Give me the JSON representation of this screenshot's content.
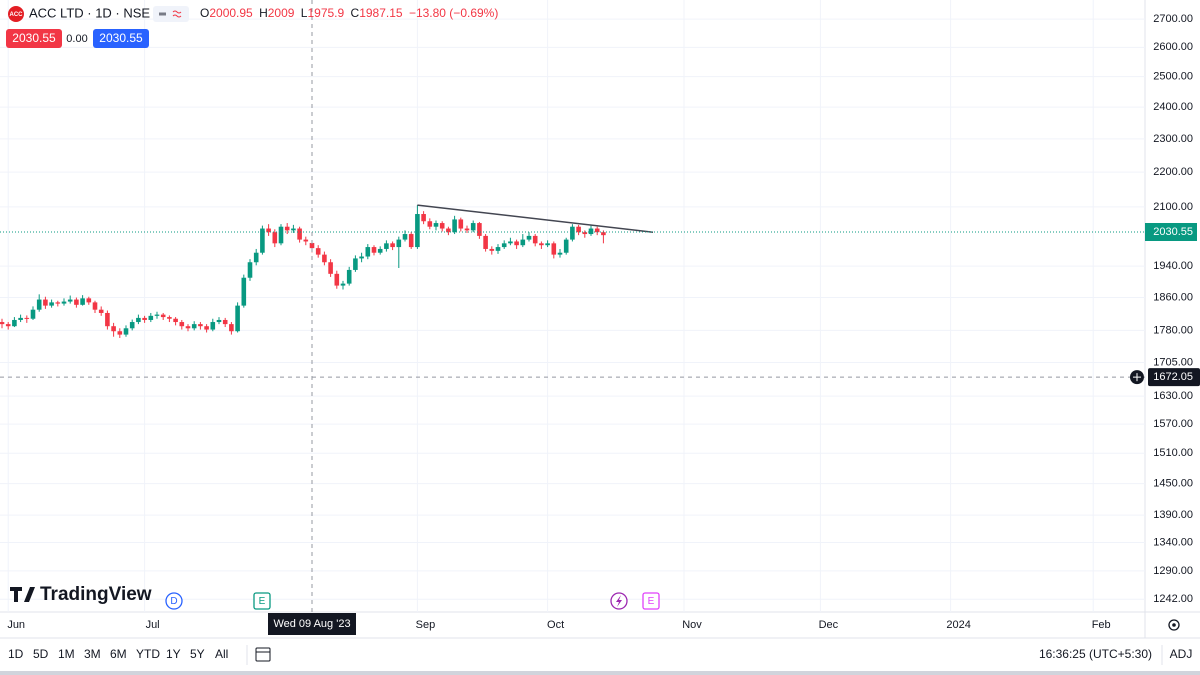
{
  "chart_data": {
    "type": "candlestick",
    "x": [
      "2023-05-31",
      "2023-06-01",
      "2023-06-02",
      "2023-06-05",
      "2023-06-06",
      "2023-06-07",
      "2023-06-08",
      "2023-06-09",
      "2023-06-12",
      "2023-06-13",
      "2023-06-14",
      "2023-06-15",
      "2023-06-16",
      "2023-06-19",
      "2023-06-20",
      "2023-06-21",
      "2023-06-22",
      "2023-06-23",
      "2023-06-26",
      "2023-06-27",
      "2023-06-28",
      "2023-06-29",
      "2023-06-30",
      "2023-07-03",
      "2023-07-04",
      "2023-07-05",
      "2023-07-06",
      "2023-07-07",
      "2023-07-10",
      "2023-07-11",
      "2023-07-12",
      "2023-07-13",
      "2023-07-14",
      "2023-07-17",
      "2023-07-18",
      "2023-07-19",
      "2023-07-20",
      "2023-07-21",
      "2023-07-24",
      "2023-07-25",
      "2023-07-26",
      "2023-07-27",
      "2023-07-28",
      "2023-07-31",
      "2023-08-01",
      "2023-08-02",
      "2023-08-03",
      "2023-08-04",
      "2023-08-07",
      "2023-08-08",
      "2023-08-09",
      "2023-08-10",
      "2023-08-11",
      "2023-08-14",
      "2023-08-15",
      "2023-08-16",
      "2023-08-17",
      "2023-08-18",
      "2023-08-21",
      "2023-08-22",
      "2023-08-23",
      "2023-08-24",
      "2023-08-25",
      "2023-08-28",
      "2023-08-29",
      "2023-08-30",
      "2023-08-31",
      "2023-09-01",
      "2023-09-04",
      "2023-09-05",
      "2023-09-06",
      "2023-09-07",
      "2023-09-08",
      "2023-09-11",
      "2023-09-12",
      "2023-09-13",
      "2023-09-14",
      "2023-09-15",
      "2023-09-18",
      "2023-09-19",
      "2023-09-20",
      "2023-09-21",
      "2023-09-22",
      "2023-09-25",
      "2023-09-26",
      "2023-09-27",
      "2023-09-28",
      "2023-09-29",
      "2023-10-02",
      "2023-10-03",
      "2023-10-04",
      "2023-10-05",
      "2023-10-06",
      "2023-10-09",
      "2023-10-10",
      "2023-10-11",
      "2023-10-12",
      "2023-10-13"
    ],
    "open": [
      1800,
      1795,
      1790,
      1805,
      1810,
      1808,
      1830,
      1855,
      1840,
      1848,
      1845,
      1850,
      1855,
      1842,
      1858,
      1848,
      1830,
      1822,
      1790,
      1778,
      1770,
      1785,
      1800,
      1810,
      1805,
      1815,
      1818,
      1812,
      1808,
      1800,
      1790,
      1785,
      1795,
      1790,
      1782,
      1800,
      1805,
      1795,
      1778,
      1840,
      1910,
      1950,
      1975,
      2040,
      2030,
      2000,
      2045,
      2035,
      2040,
      2010,
      2000.95,
      1987.15,
      1970,
      1950,
      1920,
      1890,
      1895,
      1930,
      1960,
      1965,
      1990,
      1975,
      1985,
      2000,
      1990,
      2010,
      2025,
      1990,
      2080,
      2060,
      2045,
      2055,
      2040,
      2030,
      2065,
      2040,
      2035,
      2055,
      2020,
      1985,
      1980,
      1990,
      2000,
      2005,
      1995,
      2010,
      2020,
      2000,
      1995,
      2000,
      1970,
      1975,
      2010,
      2045,
      2030,
      2025,
      2040,
      2030
    ],
    "high": [
      1808,
      1800,
      1812,
      1818,
      1816,
      1838,
      1868,
      1862,
      1855,
      1852,
      1858,
      1865,
      1860,
      1866,
      1862,
      1852,
      1838,
      1828,
      1798,
      1785,
      1792,
      1806,
      1818,
      1815,
      1822,
      1825,
      1822,
      1816,
      1812,
      1805,
      1795,
      1802,
      1800,
      1795,
      1808,
      1812,
      1810,
      1800,
      1848,
      1918,
      1958,
      1985,
      2048,
      2052,
      2038,
      2052,
      2055,
      2050,
      2045,
      2018,
      2009,
      1995,
      1978,
      1958,
      1928,
      1902,
      1938,
      1968,
      1975,
      1998,
      1995,
      1992,
      2008,
      2005,
      2018,
      2035,
      2030,
      2105,
      2088,
      2068,
      2062,
      2060,
      2045,
      2075,
      2070,
      2048,
      2062,
      2058,
      2025,
      1992,
      1998,
      2008,
      2015,
      2010,
      2025,
      2030,
      2025,
      2005,
      2008,
      2005,
      1985,
      2015,
      2052,
      2050,
      2035,
      2048,
      2045,
      2035
    ],
    "low": [
      1785,
      1782,
      1788,
      1800,
      1798,
      1805,
      1825,
      1832,
      1835,
      1838,
      1840,
      1845,
      1835,
      1840,
      1842,
      1822,
      1815,
      1782,
      1765,
      1762,
      1765,
      1780,
      1795,
      1798,
      1800,
      1808,
      1805,
      1800,
      1792,
      1782,
      1778,
      1780,
      1782,
      1775,
      1778,
      1795,
      1788,
      1770,
      1775,
      1835,
      1902,
      1942,
      1970,
      2020,
      1990,
      1995,
      2025,
      2028,
      2002,
      1995,
      1975.9,
      1962,
      1942,
      1912,
      1882,
      1880,
      1890,
      1925,
      1950,
      1958,
      1968,
      1970,
      1978,
      1982,
      1935,
      2005,
      1985,
      1985,
      2052,
      2038,
      2035,
      2032,
      2022,
      2025,
      2032,
      2028,
      2030,
      2012,
      1978,
      1970,
      1972,
      1985,
      1995,
      1985,
      1990,
      2005,
      1992,
      1985,
      1990,
      1960,
      1962,
      1970,
      2005,
      2022,
      2015,
      2020,
      2022,
      2000
    ],
    "close": [
      1795,
      1790,
      1805,
      1810,
      1808,
      1830,
      1855,
      1840,
      1848,
      1845,
      1850,
      1855,
      1842,
      1858,
      1848,
      1830,
      1822,
      1790,
      1778,
      1770,
      1785,
      1800,
      1810,
      1805,
      1815,
      1818,
      1812,
      1808,
      1800,
      1790,
      1785,
      1795,
      1790,
      1782,
      1800,
      1805,
      1795,
      1778,
      1840,
      1910,
      1950,
      1975,
      2040,
      2030,
      2000,
      2045,
      2035,
      2040,
      2010,
      2005,
      1987.15,
      1970,
      1950,
      1920,
      1890,
      1895,
      1930,
      1960,
      1965,
      1990,
      1975,
      1985,
      2000,
      1990,
      2010,
      2025,
      1990,
      2080,
      2060,
      2045,
      2055,
      2040,
      2030,
      2065,
      2040,
      2035,
      2055,
      2020,
      1985,
      1980,
      1990,
      2000,
      2005,
      1995,
      2010,
      2020,
      2000,
      1995,
      2000,
      1970,
      1975,
      2010,
      2045,
      2030,
      2025,
      2040,
      2030,
      2022
    ],
    "up_color": "#089981",
    "down_color": "#f23645",
    "log": true,
    "grid": true,
    "ylim": [
      1221,
      2770
    ],
    "yticks": [
      {
        "value": 1242,
        "label": "1242.00"
      },
      {
        "value": 1290,
        "label": "1290.00"
      },
      {
        "value": 1340,
        "label": "1340.00"
      },
      {
        "value": 1390,
        "label": "1390.00"
      },
      {
        "value": 1450,
        "label": "1450.00"
      },
      {
        "value": 1510,
        "label": "1510.00"
      },
      {
        "value": 1570,
        "label": "1570.00"
      },
      {
        "value": 1630,
        "label": "1630.00"
      },
      {
        "value": 1705,
        "label": "1705.00"
      },
      {
        "value": 1780,
        "label": "1780.00"
      },
      {
        "value": 1860,
        "label": "1860.00"
      },
      {
        "value": 1940,
        "label": "1940.00"
      },
      {
        "value": 2100,
        "label": "2100.00"
      },
      {
        "value": 2200,
        "label": "2200.00"
      },
      {
        "value": 2300,
        "label": "2300.00"
      },
      {
        "value": 2400,
        "label": "2400.00"
      },
      {
        "value": 2500,
        "label": "2500.00"
      },
      {
        "value": 2600,
        "label": "2600.00"
      },
      {
        "value": 2700,
        "label": "2700.00"
      }
    ],
    "xticks": [
      {
        "value": "2023-06-01",
        "label": "Jun"
      },
      {
        "value": "2023-07-03",
        "label": "Jul"
      },
      {
        "value": "2023-09-01",
        "label": "Sep"
      },
      {
        "value": "2023-10-02",
        "label": "Oct"
      },
      {
        "value": "2023-11-01",
        "label": "Nov"
      },
      {
        "value": "2023-12-01",
        "label": "Dec"
      },
      {
        "value": "2024-01-01",
        "label": "2024"
      },
      {
        "value": "2024-02-01",
        "label": "Feb"
      }
    ],
    "price_line": {
      "value": 2030.55,
      "color": "#089981"
    },
    "crosshair": {
      "x": "2023-08-09",
      "x_label": "Wed 09 Aug '23",
      "y": 1672.05
    },
    "trendline": {
      "x": [
        "2023-09-01",
        "2023-10-25"
      ],
      "y": [
        2105,
        2030
      ]
    }
  },
  "ui": {
    "symbol": "ACC LTD · 1D · NSE",
    "logo_text": "ACC",
    "ohlc_labels": [
      "O",
      "H",
      "L",
      "C"
    ],
    "change": "−13.80 (−0.69%)",
    "sell": "2030.55",
    "spread": "0.00",
    "buy": "2030.55",
    "brand": "TradingView",
    "events": [
      "D",
      "E",
      "E"
    ],
    "periods": [
      "1D",
      "5D",
      "1M",
      "3M",
      "6M",
      "YTD",
      "1Y",
      "5Y",
      "All"
    ],
    "clock": "16:36:25 (UTC+5:30)",
    "adj": "ADJ"
  }
}
